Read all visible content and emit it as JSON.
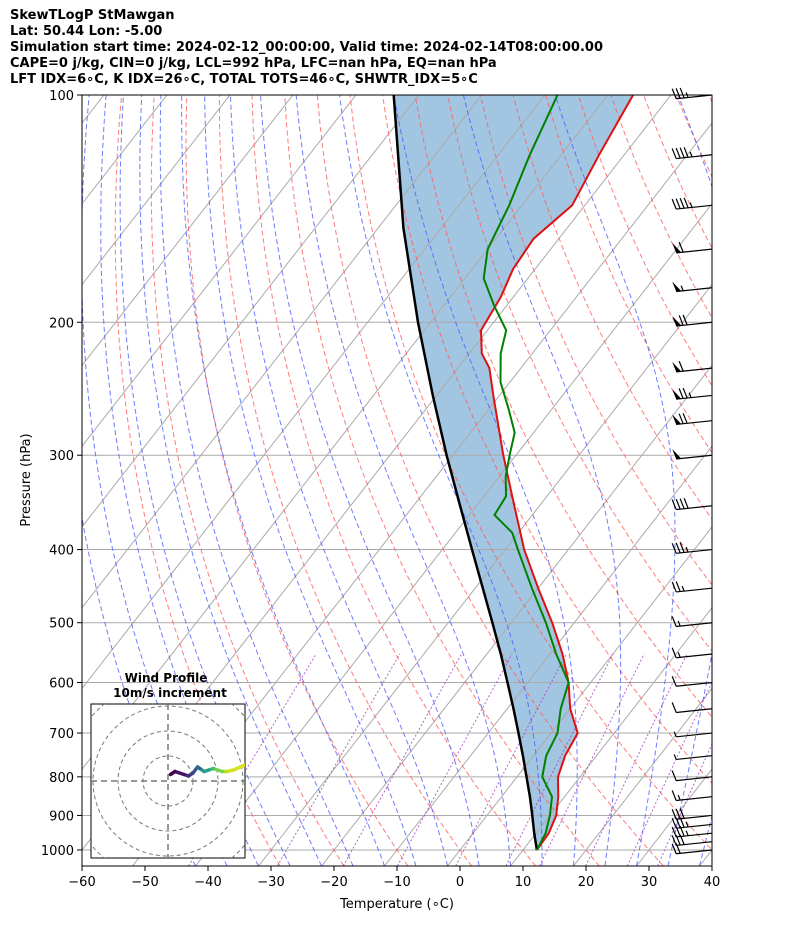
{
  "title": {
    "line1": "SkewTLogP StMawgan",
    "line2": "Lat: 50.44   Lon: -5.00",
    "line3": "Simulation start time: 2024-02-12_00:00:00, Valid time: 2024-02-14T08:00:00.00",
    "line4": "CAPE=0 j/kg, CIN=0 j/kg, LCL=992 hPa, LFC=nan hPa, EQ=nan hPa",
    "line5": "LFT IDX=6∘C, K IDX=26∘C, TOTAL TOTS=46∘C, SHWTR_IDX=5∘C"
  },
  "chart_data": {
    "type": "line",
    "subtype": "skew-t log-p",
    "xlabel": "Temperature (∘C)",
    "ylabel": "Pressure (hPa)",
    "xlim": [
      -60,
      40
    ],
    "ylim": [
      1050,
      100
    ],
    "y_scale": "log",
    "x_ticks": [
      -60,
      -50,
      -40,
      -30,
      -20,
      -10,
      0,
      10,
      20,
      30,
      40
    ],
    "x_tick_labels": [
      "−60",
      "−50",
      "−40",
      "−30",
      "−20",
      "−10",
      "0",
      "10",
      "20",
      "30",
      "40"
    ],
    "y_ticks": [
      1000,
      900,
      800,
      700,
      600,
      500,
      400,
      300,
      200,
      100
    ],
    "y_tick_labels": [
      "1000",
      "900",
      "800",
      "700",
      "600",
      "500",
      "400",
      "300",
      "200",
      "100"
    ],
    "grid": true,
    "colors": {
      "temperature": "#e01010",
      "dewpoint": "#008000",
      "parcel": "#000000",
      "cape_fill": "#7aaed4",
      "dry_adiabat": "#ff5a5a",
      "moist_adiabat": "#4a5cff",
      "mixing_ratio": "#a040c0",
      "isotherm": "#aaaaaa"
    },
    "series": [
      {
        "key": "temperature",
        "pressure": [
          1000,
          950,
          900,
          850,
          800,
          750,
          700,
          650,
          600,
          550,
          500,
          450,
          400,
          350,
          300,
          250,
          230,
          220,
          205,
          185,
          170,
          155,
          140,
          120,
          100
        ],
        "temp": [
          12.2,
          12.0,
          11.0,
          9.0,
          6.5,
          5.0,
          4.2,
          0,
          -3.5,
          -8,
          -13.5,
          -20,
          -27,
          -34,
          -42,
          -51,
          -55,
          -58,
          -61,
          -62,
          -63.5,
          -64,
          -62,
          -64,
          -66
        ]
      },
      {
        "key": "dewpoint",
        "pressure": [
          1000,
          950,
          900,
          850,
          800,
          750,
          700,
          650,
          600,
          550,
          500,
          450,
          400,
          380,
          360,
          340,
          320,
          300,
          280,
          260,
          240,
          220,
          205,
          190,
          175,
          160,
          140,
          120,
          100
        ],
        "temp": [
          12.2,
          11.5,
          10.0,
          8.0,
          4.0,
          2.0,
          1.0,
          -1.5,
          -3.5,
          -9,
          -14.5,
          -21,
          -28,
          -31,
          -36,
          -36.5,
          -39,
          -41,
          -43,
          -47,
          -51.5,
          -55,
          -57,
          -62,
          -67,
          -70,
          -72,
          -75,
          -78
        ]
      }
    ],
    "parcel": {
      "pressure": [
        1000,
        950,
        900,
        850,
        800,
        750,
        700,
        650,
        600,
        550,
        500,
        450,
        400,
        350,
        300,
        250,
        200,
        150,
        100
      ],
      "temp": [
        12.2,
        9.7,
        7.2,
        4.5,
        1.5,
        -1.7,
        -5.2,
        -9.0,
        -13.2,
        -17.8,
        -23.0,
        -28.8,
        -35.3,
        -42.6,
        -51.0,
        -60.6,
        -72.0,
        -86.0,
        -104.0
      ]
    },
    "wind_barbs": {
      "pressure": [
        1000,
        975,
        950,
        925,
        900,
        850,
        800,
        750,
        700,
        650,
        600,
        550,
        500,
        450,
        400,
        350,
        300,
        270,
        250,
        230,
        200,
        180,
        160,
        140,
        120,
        100
      ],
      "speed_kt": [
        20,
        30,
        35,
        35,
        30,
        15,
        10,
        5,
        5,
        10,
        10,
        15,
        15,
        25,
        35,
        40,
        50,
        70,
        75,
        60,
        70,
        55,
        60,
        45,
        45,
        35
      ]
    },
    "inset": {
      "title_line1": "Wind Profile",
      "title_line2": "10m/s increment",
      "hodograph": {
        "u": [
          14,
          12,
          9,
          6,
          3,
          1,
          -1,
          -3,
          -5,
          -7,
          -9,
          -10,
          -11,
          -12,
          -13,
          -14,
          -16,
          -18,
          -20,
          -22
        ],
        "v": [
          -12,
          -10,
          -8,
          -6,
          -5,
          -5,
          -6,
          -7,
          -6,
          -5,
          -7,
          -8,
          -6,
          -4,
          -3,
          -2,
          -3,
          -4,
          -5,
          -3
        ]
      }
    }
  }
}
